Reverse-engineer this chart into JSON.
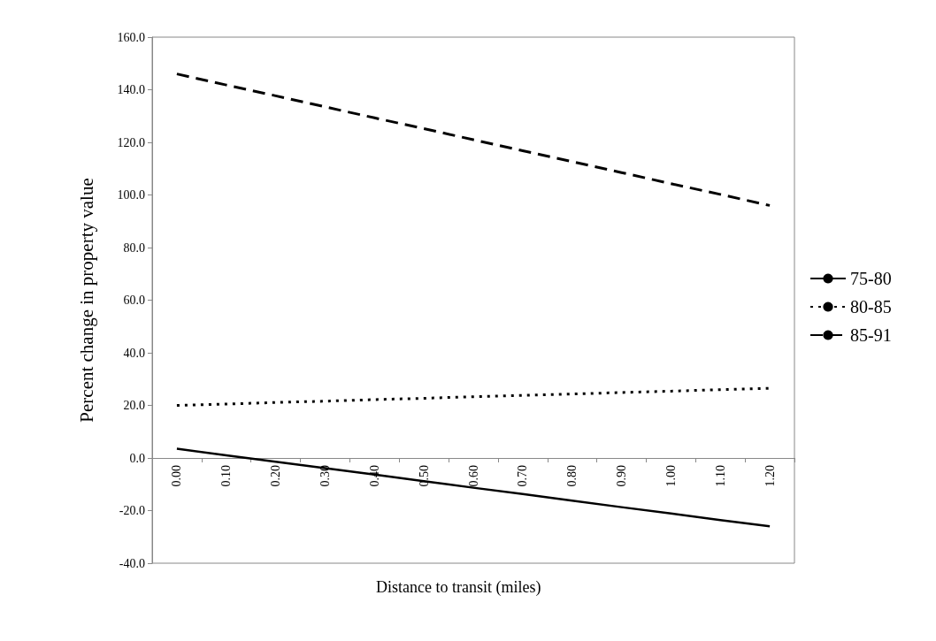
{
  "chart_data": {
    "type": "line",
    "xlabel": "Distance to transit (miles)",
    "ylabel": "Percent change in property value",
    "categories": [
      "0.00",
      "0.10",
      "0.20",
      "0.30",
      "0.40",
      "0.50",
      "0.60",
      "0.70",
      "0.80",
      "0.90",
      "1.00",
      "1.10",
      "1.20"
    ],
    "series": [
      {
        "name": "75-80",
        "color": "#000000",
        "line_style": "solid",
        "values": [
          3.5,
          1.0,
          -1.4,
          -3.9,
          -6.3,
          -8.8,
          -11.3,
          -13.7,
          -16.2,
          -18.7,
          -21.1,
          -23.6,
          -26.0
        ]
      },
      {
        "name": "80-85",
        "color": "#000000",
        "line_style": "dotted",
        "values": [
          20.0,
          20.5,
          21.1,
          21.6,
          22.2,
          22.7,
          23.3,
          23.8,
          24.3,
          24.9,
          25.4,
          26.0,
          26.5
        ]
      },
      {
        "name": "85-91",
        "color": "#000000",
        "line_style": "dashed",
        "values": [
          146.0,
          141.8,
          137.7,
          133.5,
          129.3,
          125.2,
          121.0,
          116.8,
          112.7,
          108.5,
          104.3,
          100.2,
          96.0
        ]
      }
    ],
    "ylim": [
      -40,
      160
    ],
    "yticks": [
      {
        "value": -40,
        "label": "-40.0"
      },
      {
        "value": -20,
        "label": "-20.0"
      },
      {
        "value": 0,
        "label": "0.0"
      },
      {
        "value": 20,
        "label": "20.0"
      },
      {
        "value": 40,
        "label": "40.0"
      },
      {
        "value": 60,
        "label": "60.0"
      },
      {
        "value": 80,
        "label": "80.0"
      },
      {
        "value": 100,
        "label": "100.0"
      },
      {
        "value": 120,
        "label": "120.0"
      },
      {
        "value": 140,
        "label": "140.0"
      },
      {
        "value": 160,
        "label": "160.0"
      }
    ],
    "grid": false,
    "legend": "right",
    "marker": "none"
  }
}
